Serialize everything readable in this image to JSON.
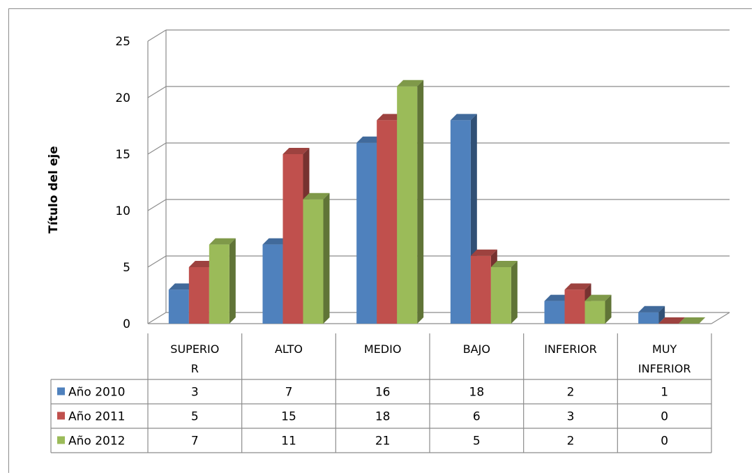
{
  "chart_data": {
    "type": "bar",
    "title": "",
    "xlabel": "",
    "ylabel": "Título del eje",
    "ylim": [
      0,
      25
    ],
    "yticks": [
      0,
      5,
      10,
      15,
      20,
      25
    ],
    "categories": [
      [
        "SUPERIO",
        "R"
      ],
      [
        "ALTO"
      ],
      [
        "MEDIO"
      ],
      [
        "BAJO"
      ],
      [
        "INFERIOR"
      ],
      [
        "MUY",
        "INFERIOR"
      ]
    ],
    "series": [
      {
        "name": "Año 2010",
        "color": "#4f81bd",
        "values": [
          3,
          7,
          16,
          18,
          2,
          1
        ]
      },
      {
        "name": "Año 2011",
        "color": "#c0504d",
        "values": [
          5,
          15,
          18,
          6,
          3,
          0
        ]
      },
      {
        "name": "Año 2012",
        "color": "#9bbb59",
        "values": [
          7,
          11,
          21,
          5,
          2,
          0
        ]
      }
    ],
    "grid": true,
    "style": "3d-clustered-column",
    "data_table": true
  }
}
